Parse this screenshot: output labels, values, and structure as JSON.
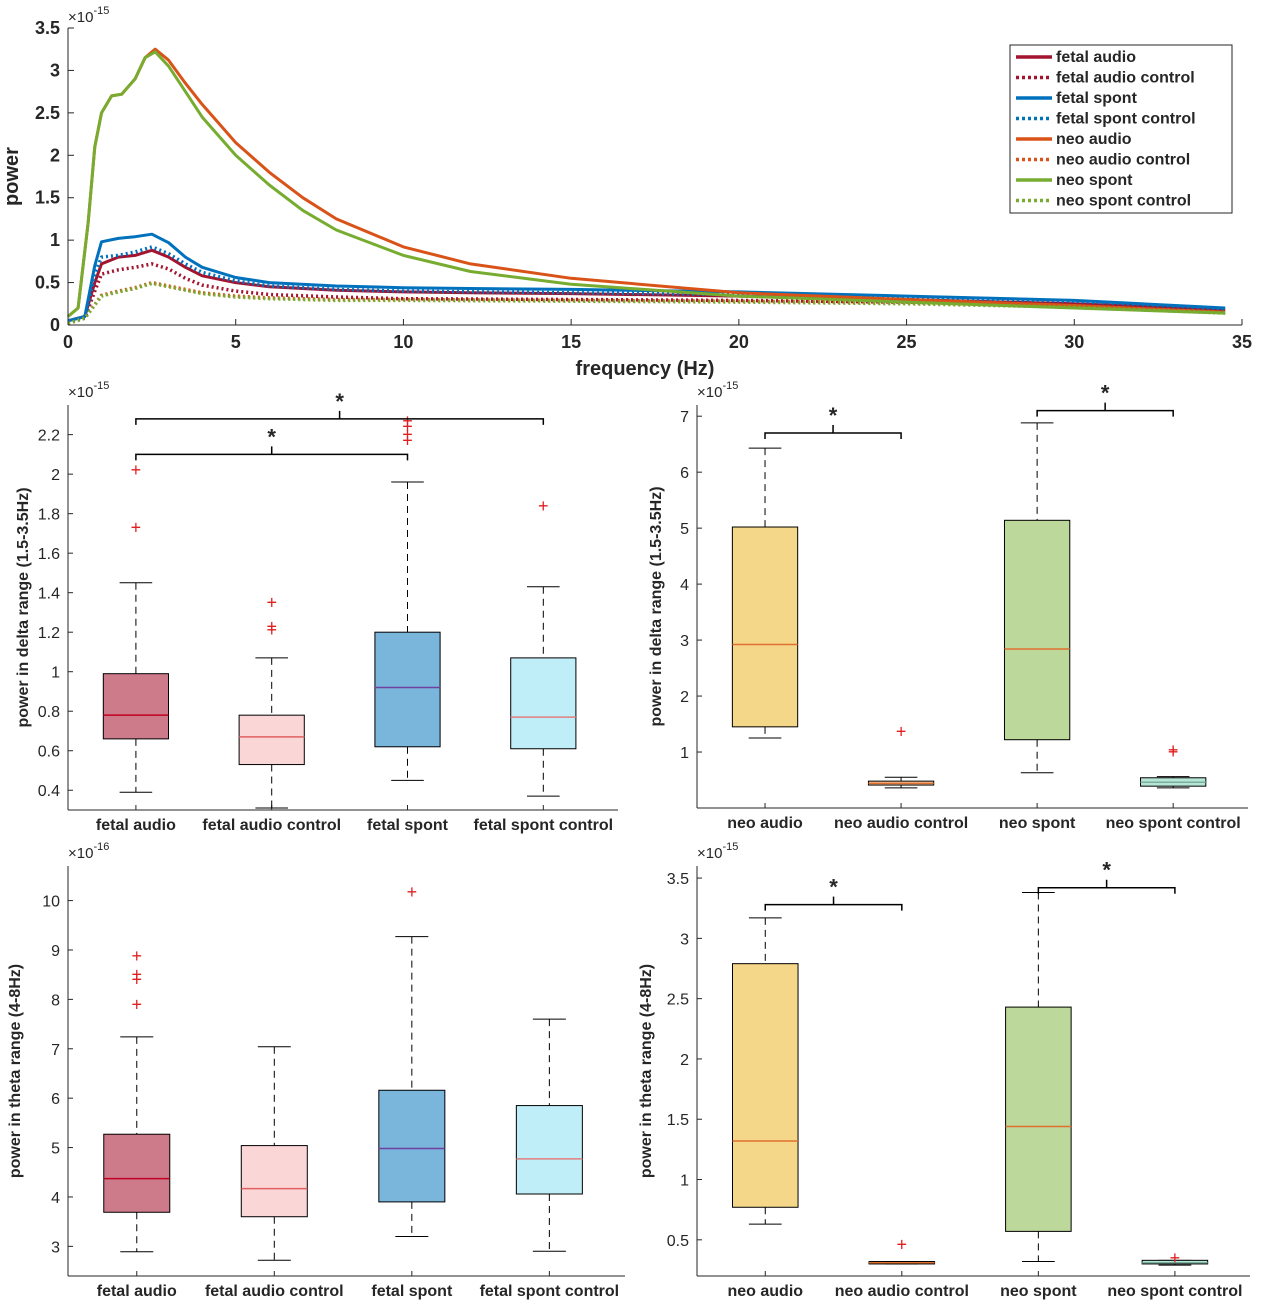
{
  "chart_data": [
    {
      "type": "line",
      "xlabel": "frequency (Hz)",
      "ylabel": "power",
      "exponent": "×10",
      "exponent_power": "-15",
      "xlim": [
        0,
        35
      ],
      "ylim": [
        0,
        3.5
      ],
      "xticks": [
        "0",
        "5",
        "10",
        "15",
        "20",
        "25",
        "30",
        "35"
      ],
      "yticks": [
        "0",
        "0.5",
        "1",
        "1.5",
        "2",
        "2.5",
        "3",
        "3.5"
      ],
      "legend_position": "top-right",
      "series": [
        {
          "name": "fetal audio",
          "color": "#a2142f",
          "style": "solid",
          "x": [
            0,
            0.5,
            0.8,
            1,
            1.5,
            2,
            2.5,
            3,
            3.5,
            4,
            5,
            6,
            8,
            10,
            12,
            15,
            20,
            25,
            30,
            34.5
          ],
          "y": [
            0.05,
            0.1,
            0.5,
            0.72,
            0.8,
            0.82,
            0.88,
            0.8,
            0.68,
            0.58,
            0.5,
            0.45,
            0.41,
            0.39,
            0.38,
            0.37,
            0.34,
            0.3,
            0.25,
            0.18
          ]
        },
        {
          "name": "fetal audio control",
          "color": "#a2142f",
          "style": "dotted",
          "x": [
            0,
            0.5,
            0.8,
            1,
            1.5,
            2,
            2.5,
            3,
            3.5,
            4,
            5,
            6,
            8,
            10,
            15,
            20,
            25,
            30,
            34.5
          ],
          "y": [
            0.05,
            0.08,
            0.4,
            0.6,
            0.65,
            0.68,
            0.72,
            0.66,
            0.55,
            0.47,
            0.4,
            0.36,
            0.33,
            0.31,
            0.3,
            0.29,
            0.27,
            0.23,
            0.17
          ]
        },
        {
          "name": "fetal spont",
          "color": "#0072bd",
          "style": "solid",
          "x": [
            0,
            0.5,
            0.8,
            1,
            1.5,
            2,
            2.5,
            3,
            3.5,
            4,
            5,
            6,
            8,
            10,
            12,
            15,
            20,
            25,
            30,
            34.5
          ],
          "y": [
            0.05,
            0.1,
            0.7,
            0.98,
            1.02,
            1.04,
            1.07,
            0.97,
            0.8,
            0.68,
            0.56,
            0.5,
            0.46,
            0.44,
            0.43,
            0.42,
            0.39,
            0.34,
            0.29,
            0.2
          ]
        },
        {
          "name": "fetal spont control",
          "color": "#0072bd",
          "style": "dotted",
          "x": [
            0,
            0.5,
            0.8,
            1,
            1.5,
            2,
            2.5,
            3,
            3.5,
            4,
            5,
            6,
            8,
            10,
            15,
            20,
            25,
            30,
            34.5
          ],
          "y": [
            0.05,
            0.08,
            0.6,
            0.8,
            0.82,
            0.86,
            0.92,
            0.84,
            0.72,
            0.62,
            0.52,
            0.46,
            0.42,
            0.4,
            0.38,
            0.36,
            0.33,
            0.28,
            0.19
          ]
        },
        {
          "name": "neo audio",
          "color": "#d95319",
          "style": "solid",
          "x": [
            0,
            0.3,
            0.6,
            0.8,
            1,
            1.3,
            1.6,
            2,
            2.3,
            2.6,
            3,
            3.5,
            4,
            5,
            6,
            7,
            8,
            10,
            12,
            15,
            20,
            25,
            30,
            34.5
          ],
          "y": [
            0.1,
            0.2,
            1.2,
            2.1,
            2.5,
            2.7,
            2.72,
            2.9,
            3.15,
            3.25,
            3.12,
            2.85,
            2.6,
            2.15,
            1.8,
            1.5,
            1.25,
            0.92,
            0.72,
            0.55,
            0.38,
            0.3,
            0.23,
            0.15
          ]
        },
        {
          "name": "neo audio control",
          "color": "#d95319",
          "style": "dotted",
          "x": [
            0,
            0.5,
            1,
            1.5,
            2,
            2.5,
            3,
            4,
            5,
            6,
            8,
            10,
            15,
            20,
            25,
            30,
            34.5
          ],
          "y": [
            0.02,
            0.08,
            0.35,
            0.4,
            0.44,
            0.5,
            0.46,
            0.38,
            0.34,
            0.32,
            0.3,
            0.3,
            0.29,
            0.28,
            0.26,
            0.22,
            0.15
          ]
        },
        {
          "name": "neo spont",
          "color": "#77ac30",
          "style": "solid",
          "x": [
            0,
            0.3,
            0.6,
            0.8,
            1,
            1.3,
            1.6,
            2,
            2.3,
            2.6,
            3,
            3.5,
            4,
            5,
            6,
            7,
            8,
            10,
            12,
            15,
            20,
            25,
            30,
            34.5
          ],
          "y": [
            0.1,
            0.2,
            1.2,
            2.1,
            2.5,
            2.7,
            2.72,
            2.9,
            3.15,
            3.22,
            3.05,
            2.75,
            2.45,
            2.0,
            1.65,
            1.35,
            1.12,
            0.82,
            0.63,
            0.48,
            0.34,
            0.27,
            0.2,
            0.14
          ]
        },
        {
          "name": "neo spont control",
          "color": "#77ac30",
          "style": "dotted",
          "x": [
            0,
            0.5,
            1,
            1.5,
            2,
            2.5,
            3,
            4,
            5,
            6,
            8,
            10,
            15,
            20,
            25,
            30,
            34.5
          ],
          "y": [
            0.02,
            0.08,
            0.34,
            0.39,
            0.43,
            0.49,
            0.45,
            0.37,
            0.33,
            0.31,
            0.29,
            0.29,
            0.28,
            0.27,
            0.25,
            0.21,
            0.14
          ]
        }
      ]
    },
    {
      "type": "box",
      "ylabel": "power in delta range (1.5-3.5Hz)",
      "exponent": "×10",
      "exponent_power": "-15",
      "ylim": [
        0.3,
        2.35
      ],
      "yticks": [
        "0.4",
        "0.6",
        "0.8",
        "1",
        "1.2",
        "1.4",
        "1.6",
        "1.8",
        "2",
        "2.2"
      ],
      "categories": [
        "fetal audio",
        "fetal audio control",
        "fetal spont",
        "fetal spont control"
      ],
      "boxes": [
        {
          "min": 0.39,
          "q1": 0.66,
          "median": 0.78,
          "q3": 0.99,
          "max": 1.45,
          "outliers": [
            1.73,
            2.02
          ],
          "fill": "#cd7a8b",
          "median_color": "#c00020"
        },
        {
          "min": 0.31,
          "q1": 0.53,
          "median": 0.67,
          "q3": 0.78,
          "max": 1.07,
          "outliers": [
            1.21,
            1.23,
            1.35
          ],
          "fill": "#fbd6d6",
          "median_color": "#e06060"
        },
        {
          "min": 0.45,
          "q1": 0.62,
          "median": 0.92,
          "q3": 1.2,
          "max": 1.96,
          "outliers": [
            2.17,
            2.2,
            2.24,
            2.27
          ],
          "fill": "#7ab5dc",
          "median_color": "#7040a0"
        },
        {
          "min": 0.37,
          "q1": 0.61,
          "median": 0.77,
          "q3": 1.07,
          "max": 1.43,
          "outliers": [
            1.84
          ],
          "fill": "#c0eef8",
          "median_color": "#e08080"
        }
      ],
      "significance": [
        {
          "from": 0,
          "to": 3,
          "level": 2.28,
          "label": "*"
        },
        {
          "from": 0,
          "to": 2,
          "level": 2.1,
          "label": "*"
        }
      ]
    },
    {
      "type": "box",
      "ylabel": "power in delta range (1.5-3.5Hz)",
      "exponent": "×10",
      "exponent_power": "-15",
      "ylim": [
        0,
        7.2
      ],
      "yticks": [
        "1",
        "2",
        "3",
        "4",
        "5",
        "6",
        "7"
      ],
      "categories": [
        "neo audio",
        "neo audio control",
        "neo spont",
        "neo spont control"
      ],
      "boxes": [
        {
          "min": 1.25,
          "q1": 1.45,
          "median": 2.92,
          "q3": 5.02,
          "max": 6.43,
          "outliers": [],
          "fill": "#f5d78a",
          "median_color": "#e07030"
        },
        {
          "min": 0.36,
          "q1": 0.41,
          "median": 0.44,
          "q3": 0.48,
          "max": 0.55,
          "outliers": [
            1.37
          ],
          "fill": "#f6c9a4",
          "median_color": "#e07030"
        },
        {
          "min": 0.63,
          "q1": 1.22,
          "median": 2.84,
          "q3": 5.14,
          "max": 6.88,
          "outliers": [],
          "fill": "#bcd89a",
          "median_color": "#e07030"
        },
        {
          "min": 0.36,
          "q1": 0.39,
          "median": 0.46,
          "q3": 0.54,
          "max": 0.56,
          "outliers": [
            1.0,
            1.04
          ],
          "fill": "#b7e6d6",
          "median_color": "#7ab0a0"
        }
      ],
      "significance": [
        {
          "from": 0,
          "to": 1,
          "level": 6.7,
          "label": "*"
        },
        {
          "from": 2,
          "to": 3,
          "level": 7.1,
          "label": "*"
        }
      ]
    },
    {
      "type": "box",
      "ylabel": "power in theta range (4-8Hz)",
      "exponent": "×10",
      "exponent_power": "-16",
      "ylim": [
        2.4,
        10.7
      ],
      "yticks": [
        "3",
        "4",
        "5",
        "6",
        "7",
        "8",
        "9",
        "10"
      ],
      "categories": [
        "fetal audio",
        "fetal audio control",
        "fetal spont",
        "fetal spont control"
      ],
      "boxes": [
        {
          "min": 2.89,
          "q1": 3.69,
          "median": 4.37,
          "q3": 5.27,
          "max": 7.24,
          "outliers": [
            7.9,
            8.4,
            8.5,
            8.88
          ],
          "fill": "#cd7a8b",
          "median_color": "#c00020"
        },
        {
          "min": 2.72,
          "q1": 3.6,
          "median": 4.17,
          "q3": 5.04,
          "max": 7.04,
          "outliers": [],
          "fill": "#fbd6d6",
          "median_color": "#e06060"
        },
        {
          "min": 3.2,
          "q1": 3.9,
          "median": 4.98,
          "q3": 6.16,
          "max": 9.27,
          "outliers": [
            10.17
          ],
          "fill": "#7ab5dc",
          "median_color": "#7040a0"
        },
        {
          "min": 2.9,
          "q1": 4.06,
          "median": 4.77,
          "q3": 5.85,
          "max": 7.6,
          "outliers": [],
          "fill": "#c0eef8",
          "median_color": "#e08080"
        }
      ],
      "significance": []
    },
    {
      "type": "box",
      "ylabel": "power in theta range (4-8Hz)",
      "exponent": "×10",
      "exponent_power": "-15",
      "ylim": [
        0.2,
        3.6
      ],
      "yticks": [
        "0.5",
        "1",
        "1.5",
        "2",
        "2.5",
        "3",
        "3.5"
      ],
      "categories": [
        "neo audio",
        "neo audio control",
        "neo spont",
        "neo spont control"
      ],
      "boxes": [
        {
          "min": 0.63,
          "q1": 0.77,
          "median": 1.32,
          "q3": 2.79,
          "max": 3.17,
          "outliers": [],
          "fill": "#f5d78a",
          "median_color": "#e07030"
        },
        {
          "min": 0.3,
          "q1": 0.3,
          "median": 0.31,
          "q3": 0.32,
          "max": 0.32,
          "outliers": [
            0.46
          ],
          "fill": "#f6c9a4",
          "median_color": "#e07030"
        },
        {
          "min": 0.32,
          "q1": 0.57,
          "median": 1.44,
          "q3": 2.43,
          "max": 3.38,
          "outliers": [],
          "fill": "#bcd89a",
          "median_color": "#e07030"
        },
        {
          "min": 0.29,
          "q1": 0.3,
          "median": 0.31,
          "q3": 0.33,
          "max": 0.33,
          "outliers": [
            0.35
          ],
          "fill": "#b7e6d6",
          "median_color": "#7ab0a0"
        }
      ],
      "significance": [
        {
          "from": 0,
          "to": 1,
          "level": 3.28,
          "label": "*"
        },
        {
          "from": 2,
          "to": 3,
          "level": 3.42,
          "label": "*"
        }
      ]
    }
  ]
}
